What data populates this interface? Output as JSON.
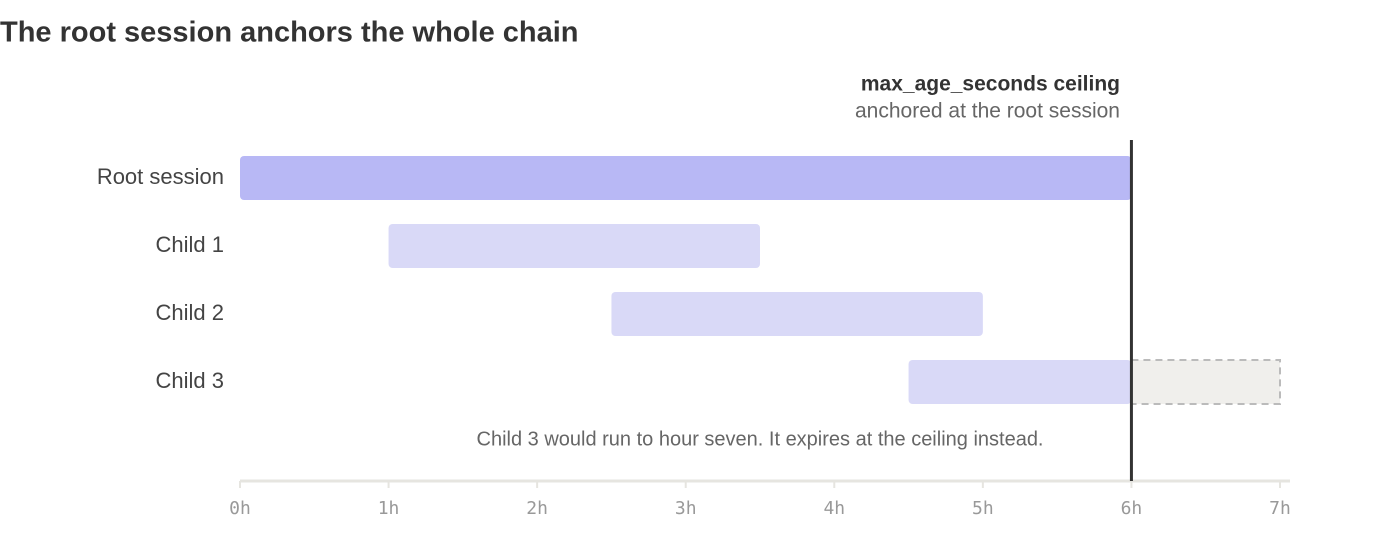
{
  "chart_data": {
    "type": "gantt",
    "title": "The root session anchors the whole chain",
    "categories": [
      "Root session",
      "Child 1",
      "Child 2",
      "Child 3"
    ],
    "start": [
      0,
      1,
      2.5,
      4.5
    ],
    "end": [
      6,
      3.5,
      5,
      6
    ],
    "projected_end": [
      null,
      null,
      null,
      7
    ],
    "colors": [
      "#b8b8f5",
      "#d9d9f7",
      "#d9d9f7",
      "#d9d9f7"
    ],
    "projected_color": "#f0efec",
    "ceiling": {
      "value": 6,
      "label": "max_age_seconds ceiling",
      "sublabel": "anchored at the root session",
      "color": "#333333"
    },
    "note": "Child 3 would run to hour seven. It expires at the ceiling instead.",
    "xlim": [
      0,
      7
    ],
    "xticks": [
      {
        "value": 0,
        "label": "0h"
      },
      {
        "value": 1,
        "label": "1h"
      },
      {
        "value": 2,
        "label": "2h"
      },
      {
        "value": 3,
        "label": "3h"
      },
      {
        "value": 4,
        "label": "4h"
      },
      {
        "value": 5,
        "label": "5h"
      },
      {
        "value": 6,
        "label": "6h"
      },
      {
        "value": 7,
        "label": "7h"
      }
    ]
  }
}
